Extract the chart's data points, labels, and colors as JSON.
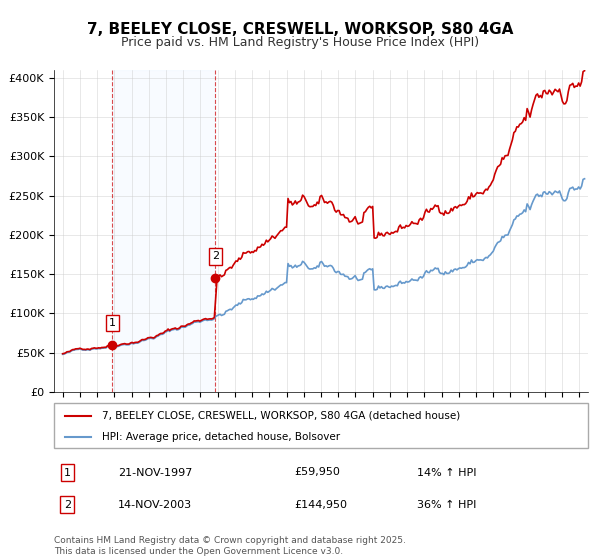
{
  "title": "7, BEELEY CLOSE, CRESWELL, WORKSOP, S80 4GA",
  "subtitle": "Price paid vs. HM Land Registry's House Price Index (HPI)",
  "title_fontsize": 11,
  "subtitle_fontsize": 9,
  "legend_label_red": "7, BEELEY CLOSE, CRESWELL, WORKSOP, S80 4GA (detached house)",
  "legend_label_blue": "HPI: Average price, detached house, Bolsover",
  "footer": "Contains HM Land Registry data © Crown copyright and database right 2025.\nThis data is licensed under the Open Government Licence v3.0.",
  "transaction1_label": "1",
  "transaction1_date": "21-NOV-1997",
  "transaction1_price": "£59,950",
  "transaction1_hpi": "14% ↑ HPI",
  "transaction2_label": "2",
  "transaction2_date": "14-NOV-2003",
  "transaction2_price": "£144,950",
  "transaction2_hpi": "36% ↑ HPI",
  "color_red": "#cc0000",
  "color_blue": "#6699cc",
  "color_shading": "#ddeeff",
  "ylim": [
    0,
    410000
  ],
  "yticks": [
    0,
    50000,
    100000,
    150000,
    200000,
    250000,
    300000,
    350000,
    400000
  ],
  "ytick_labels": [
    "£0",
    "£50K",
    "£100K",
    "£150K",
    "£200K",
    "£250K",
    "£300K",
    "£350K",
    "£400K"
  ],
  "transaction1_x": 1997.89,
  "transaction1_y": 59950,
  "transaction2_x": 2003.87,
  "transaction2_y": 144950,
  "xlim": [
    1994.5,
    2025.5
  ]
}
